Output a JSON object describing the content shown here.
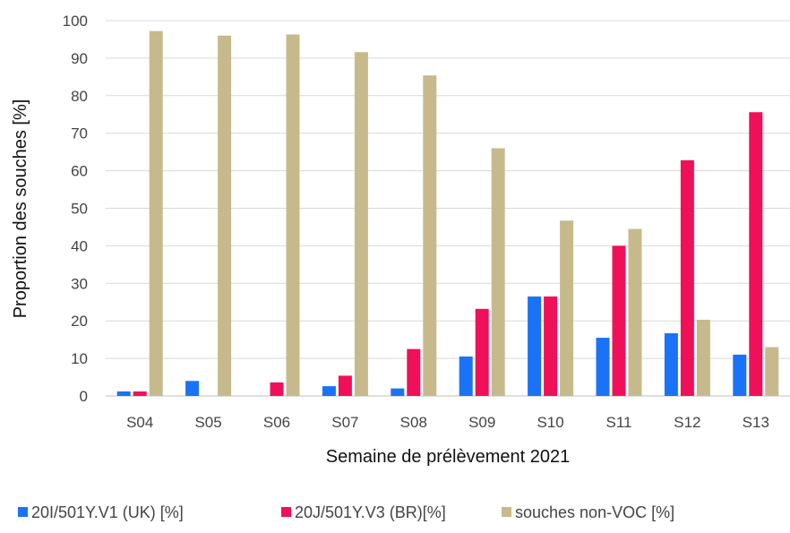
{
  "chart_data": {
    "type": "bar",
    "title": "",
    "xlabel": "Semaine de prélèvement 2021",
    "ylabel": "Proportion des souches [%]",
    "ylim": [
      0,
      100
    ],
    "yticks": [
      0,
      10,
      20,
      30,
      40,
      50,
      60,
      70,
      80,
      90,
      100
    ],
    "grid": true,
    "legend_position": "bottom",
    "categories": [
      "S04",
      "S05",
      "S06",
      "S07",
      "S08",
      "S09",
      "S10",
      "S11",
      "S12",
      "S13"
    ],
    "series": [
      {
        "name": "20I/501Y.V1 (UK) [%]",
        "color": "#1a73f7",
        "values": [
          1.2,
          4.0,
          0,
          2.6,
          2.0,
          10.5,
          26.5,
          15.5,
          16.7,
          11.0
        ]
      },
      {
        "name": "20J/501Y.V3 (BR)[%]",
        "color": "#f0105a",
        "values": [
          1.2,
          0,
          3.6,
          5.4,
          12.5,
          23.2,
          26.5,
          40.0,
          62.8,
          75.6
        ]
      },
      {
        "name": "souches non-VOC [%]",
        "color": "#c6ba8c",
        "values": [
          97.2,
          96.0,
          96.3,
          91.6,
          85.4,
          66.0,
          46.7,
          44.5,
          20.3,
          13.0
        ]
      }
    ]
  }
}
